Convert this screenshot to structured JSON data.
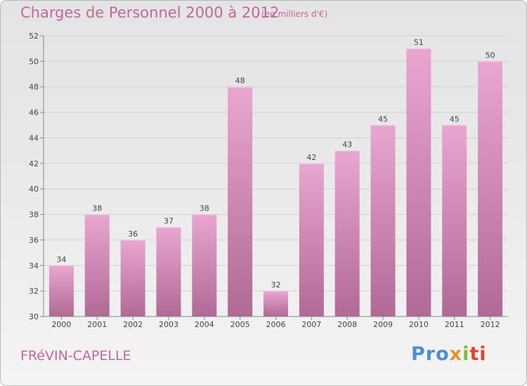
{
  "header": {
    "title": "Charges de Personnel 2000 à 2012",
    "subtitle": "(en milliers d'€)"
  },
  "footer": {
    "commune": "FRéVIN-CAPELLE",
    "logo": {
      "p1": "Pro",
      "p2": "x",
      "p3": "i",
      "p4": "ti"
    }
  },
  "colors": {
    "bar_top": "#e8a6d0",
    "bar_bottom": "#b06a95",
    "text": "#c2679b",
    "grid": "#d2d2d2"
  },
  "chart_data": {
    "type": "bar",
    "title": "Charges de Personnel 2000 à 2012",
    "subtitle": "(en milliers d'€)",
    "xlabel": "",
    "ylabel": "",
    "categories": [
      "2000",
      "2001",
      "2002",
      "2003",
      "2004",
      "2005",
      "2006",
      "2007",
      "2008",
      "2009",
      "2010",
      "2011",
      "2012"
    ],
    "values": [
      34,
      38,
      36,
      37,
      38,
      48,
      32,
      42,
      43,
      45,
      51,
      45,
      50
    ],
    "ylim": [
      30,
      52
    ],
    "yticks": [
      30,
      32,
      34,
      36,
      38,
      40,
      42,
      44,
      46,
      48,
      50,
      52
    ],
    "grid": true,
    "data_labels": true
  }
}
